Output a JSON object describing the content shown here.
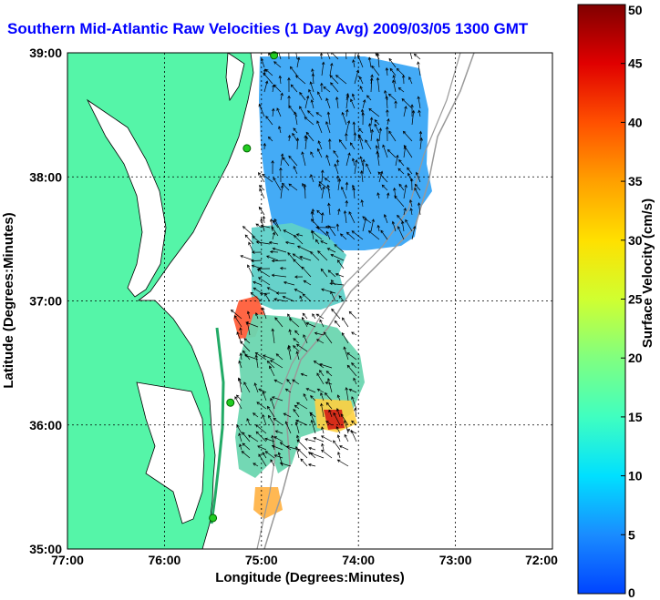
{
  "title": "Southern Mid-Atlantic Raw Velocities (1 Day Avg) 2009/03/05 1300 GMT",
  "x_axis": {
    "label": "Longitude (Degrees:Minutes)",
    "ticks": [
      "77:00",
      "76:00",
      "75:00",
      "74:00",
      "73:00",
      "72:00"
    ]
  },
  "y_axis": {
    "label": "Latitude (Degrees:Minutes)",
    "ticks": [
      "39:00",
      "38:00",
      "37:00",
      "36:00",
      "35:00"
    ]
  },
  "colorbar": {
    "label": "Surface Velocity (cm/s)",
    "min": 0,
    "max": 50,
    "ticks": [
      "0",
      "5",
      "10",
      "15",
      "20",
      "25",
      "30",
      "35",
      "40",
      "45",
      "50"
    ]
  },
  "colors": {
    "land": "#55f5a8",
    "title": "#0000ff",
    "station": "#22cc22"
  },
  "map_extent": {
    "lon_min": -77,
    "lon_max": -72,
    "lat_min": 35,
    "lat_max": 39
  },
  "stations": [
    {
      "lon": -74.87,
      "lat": 38.98
    },
    {
      "lon": -75.15,
      "lat": 38.23
    },
    {
      "lon": -75.32,
      "lat": 36.18
    },
    {
      "lon": -75.5,
      "lat": 35.25
    }
  ]
}
